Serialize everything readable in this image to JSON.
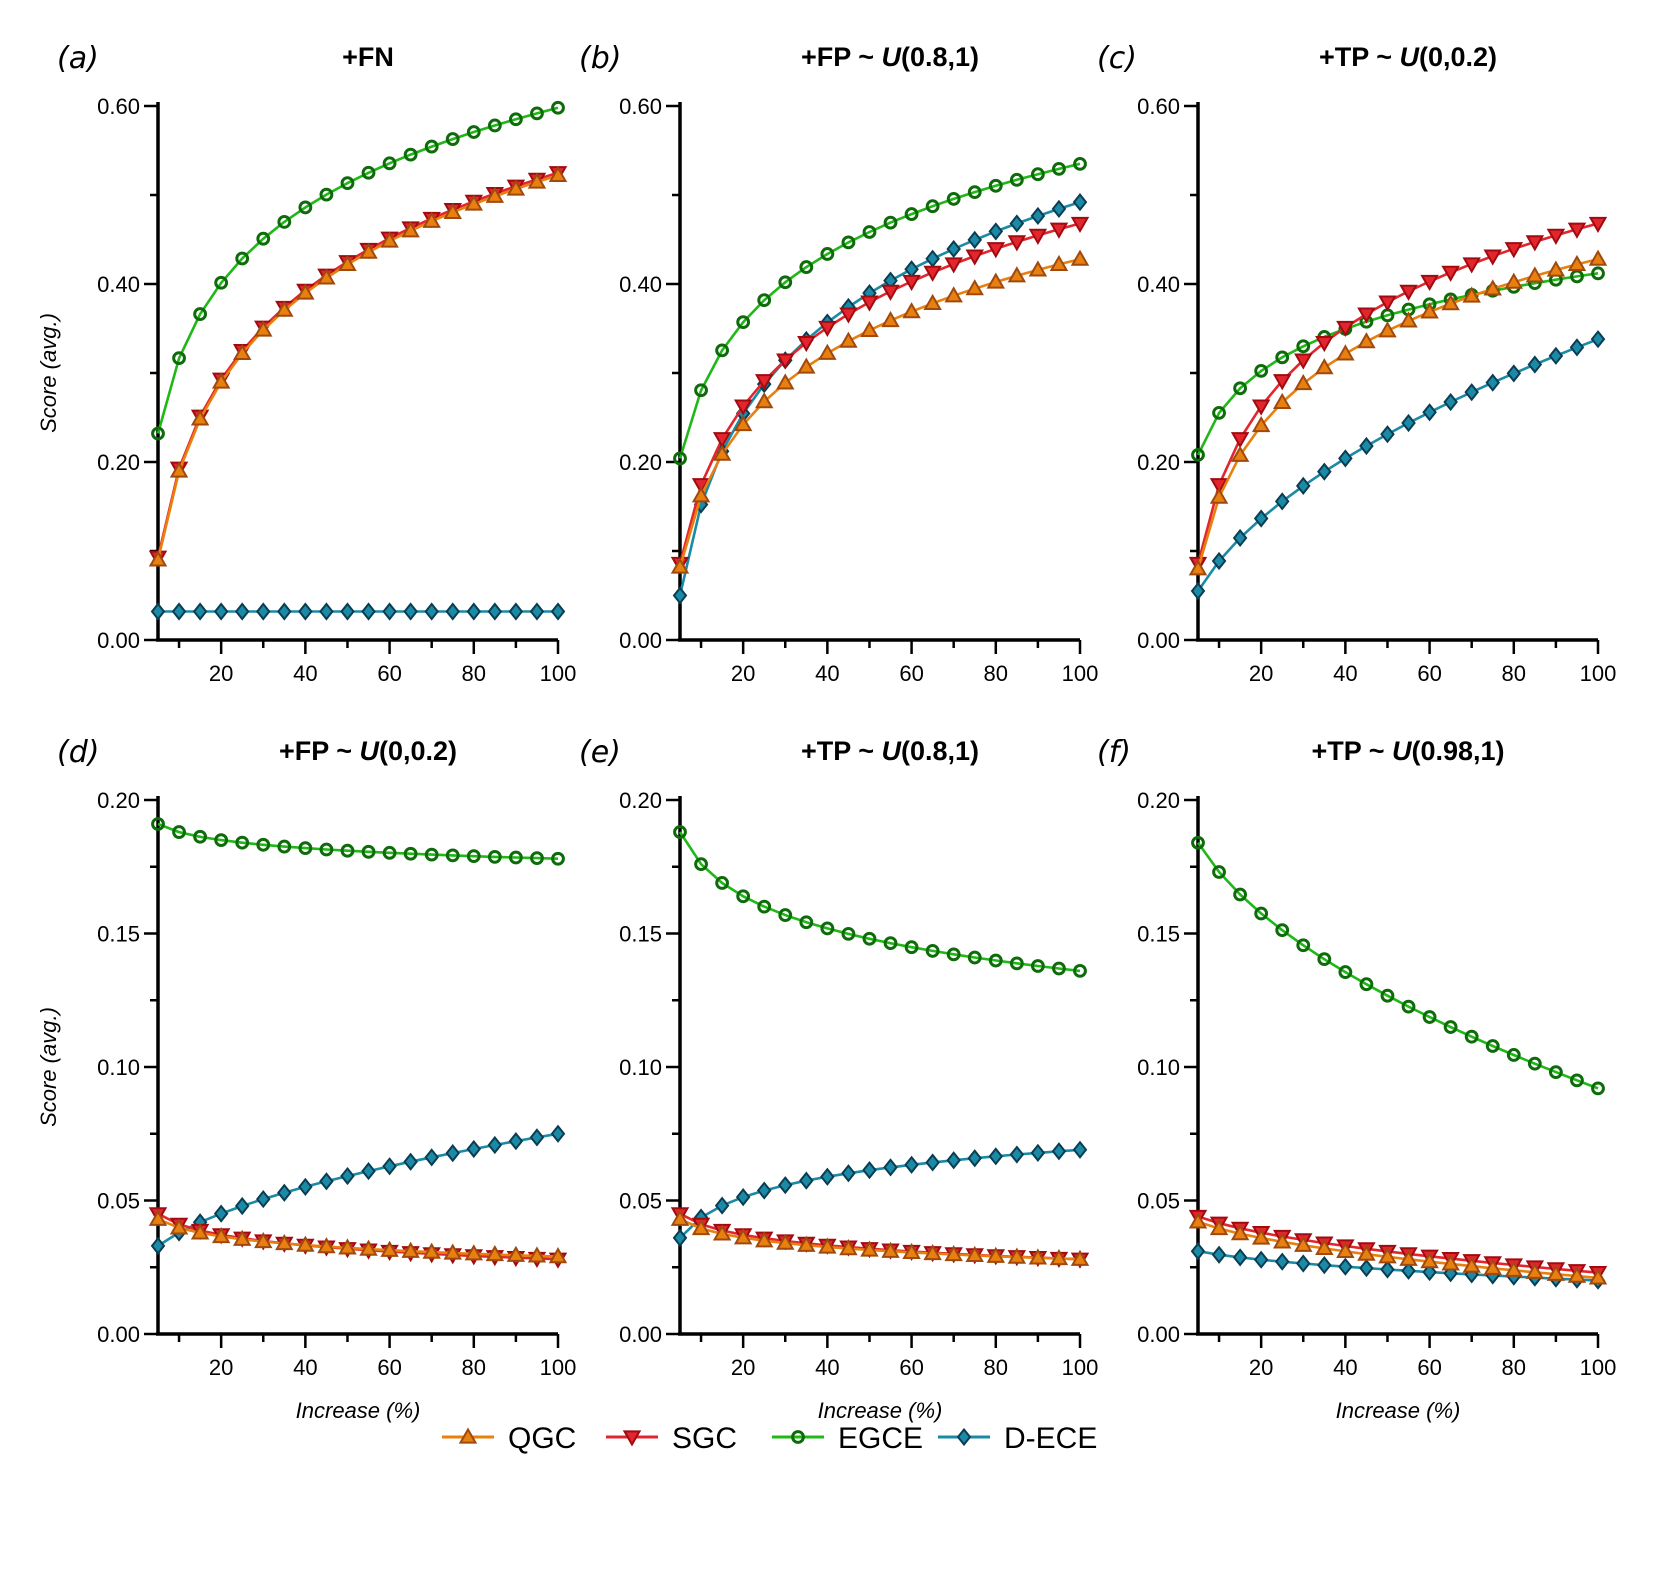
{
  "colors": {
    "QGC": "#e8800f",
    "SGC": "#e3262e",
    "EGCE": "#1fb817",
    "D-ECE": "#1b8aa6",
    "QGC_edge": "#a0490f",
    "SGC_edge": "#a00b10",
    "EGCE_edge": "#0e6b0a",
    "D-ECE_edge": "#0a3d52"
  },
  "legend": [
    {
      "key": "QGC",
      "label": "QGC",
      "marker": "triangle-up"
    },
    {
      "key": "SGC",
      "label": "SGC",
      "marker": "triangle-down"
    },
    {
      "key": "EGCE",
      "label": "EGCE",
      "marker": "circle"
    },
    {
      "key": "D-ECE",
      "label": "D-ECE",
      "marker": "diamond"
    }
  ],
  "chart_data": [
    {
      "type": "line",
      "letter": "(a)",
      "title_parts": [
        "+FN"
      ],
      "xlabel": "",
      "ylabel": "Score (avg.)",
      "xlim": [
        5,
        100
      ],
      "ylim": [
        0,
        0.6
      ],
      "xticks": [
        "20",
        "40",
        "60",
        "80",
        "100"
      ],
      "yticks": [
        "0.00",
        "0.20",
        "0.40",
        "0.60"
      ],
      "x_start": 5,
      "x_step": 5,
      "n": 20,
      "series": [
        {
          "name": "QGC",
          "start": 0.09,
          "end": 0.522,
          "shape": "log"
        },
        {
          "name": "SGC",
          "start": 0.093,
          "end": 0.525,
          "shape": "log"
        },
        {
          "name": "EGCE",
          "start": 0.232,
          "end": 0.598,
          "shape": "log"
        },
        {
          "name": "D-ECE",
          "start": 0.032,
          "end": 0.032,
          "shape": "log"
        }
      ]
    },
    {
      "type": "line",
      "letter": "(b)",
      "title_parts": [
        "+FP ~ ",
        "U",
        "(0.8,1)"
      ],
      "xlabel": "",
      "ylabel": "",
      "xlim": [
        5,
        100
      ],
      "ylim": [
        0,
        0.6
      ],
      "xticks": [
        "20",
        "40",
        "60",
        "80",
        "100"
      ],
      "yticks": [
        "0.00",
        "0.20",
        "0.40",
        "0.60"
      ],
      "x_start": 5,
      "x_step": 5,
      "n": 20,
      "series": [
        {
          "name": "QGC",
          "start": 0.082,
          "end": 0.428,
          "shape": "log"
        },
        {
          "name": "SGC",
          "start": 0.086,
          "end": 0.468,
          "shape": "log"
        },
        {
          "name": "EGCE",
          "start": 0.204,
          "end": 0.535,
          "shape": "log"
        },
        {
          "name": "D-ECE",
          "start": 0.05,
          "end": 0.492,
          "shape": "log"
        }
      ]
    },
    {
      "type": "line",
      "letter": "(c)",
      "title_parts": [
        "+TP ~ ",
        "U",
        "(0,0.2)"
      ],
      "xlabel": "",
      "ylabel": "",
      "xlim": [
        5,
        100
      ],
      "ylim": [
        0,
        0.6
      ],
      "xticks": [
        "20",
        "40",
        "60",
        "80",
        "100"
      ],
      "yticks": [
        "0.00",
        "0.20",
        "0.40",
        "0.60"
      ],
      "x_start": 5,
      "x_step": 5,
      "n": 20,
      "series": [
        {
          "name": "QGC",
          "start": 0.08,
          "end": 0.428,
          "shape": "log"
        },
        {
          "name": "SGC",
          "start": 0.086,
          "end": 0.468,
          "shape": "log"
        },
        {
          "name": "EGCE",
          "start": 0.208,
          "end": 0.412,
          "shape": "log"
        },
        {
          "name": "D-ECE",
          "start": 0.055,
          "end": 0.338,
          "shape": "sqrt"
        }
      ]
    },
    {
      "type": "line",
      "letter": "(d)",
      "title_parts": [
        "+FP ~ ",
        "U",
        "(0,0.2)"
      ],
      "xlabel": "Increase (%)",
      "ylabel": "Score (avg.)",
      "xlim": [
        5,
        100
      ],
      "ylim": [
        0,
        0.2
      ],
      "xticks": [
        "20",
        "40",
        "60",
        "80",
        "100"
      ],
      "yticks": [
        "0.00",
        "0.05",
        "0.10",
        "0.15",
        "0.20"
      ],
      "x_start": 5,
      "x_step": 5,
      "n": 20,
      "series": [
        {
          "name": "QGC",
          "start": 0.043,
          "end": 0.029,
          "shape": "log"
        },
        {
          "name": "SGC",
          "start": 0.045,
          "end": 0.028,
          "shape": "log"
        },
        {
          "name": "EGCE",
          "start": 0.191,
          "end": 0.178,
          "shape": "log"
        },
        {
          "name": "D-ECE",
          "start": 0.033,
          "end": 0.075,
          "shape": "sqrt"
        }
      ]
    },
    {
      "type": "line",
      "letter": "(e)",
      "title_parts": [
        "+TP ~ ",
        "U",
        "(0.8,1)"
      ],
      "xlabel": "Increase (%)",
      "ylabel": "",
      "xlim": [
        5,
        100
      ],
      "ylim": [
        0,
        0.2
      ],
      "xticks": [
        "20",
        "40",
        "60",
        "80",
        "100"
      ],
      "yticks": [
        "0.00",
        "0.05",
        "0.10",
        "0.15",
        "0.20"
      ],
      "x_start": 5,
      "x_step": 5,
      "n": 20,
      "series": [
        {
          "name": "QGC",
          "start": 0.043,
          "end": 0.028,
          "shape": "log"
        },
        {
          "name": "SGC",
          "start": 0.045,
          "end": 0.028,
          "shape": "log"
        },
        {
          "name": "EGCE",
          "start": 0.188,
          "end": 0.136,
          "shape": "log"
        },
        {
          "name": "D-ECE",
          "start": 0.036,
          "end": 0.069,
          "shape": "log"
        }
      ]
    },
    {
      "type": "line",
      "letter": "(f)",
      "title_parts": [
        "+TP ~ ",
        "U",
        "(0.98,1)"
      ],
      "xlabel": "Increase (%)",
      "ylabel": "",
      "xlim": [
        5,
        100
      ],
      "ylim": [
        0,
        0.2
      ],
      "xticks": [
        "20",
        "40",
        "60",
        "80",
        "100"
      ],
      "yticks": [
        "0.00",
        "0.05",
        "0.10",
        "0.15",
        "0.20"
      ],
      "x_start": 5,
      "x_step": 5,
      "n": 20,
      "series": [
        {
          "name": "QGC",
          "start": 0.042,
          "end": 0.021,
          "shape": "sqrt"
        },
        {
          "name": "SGC",
          "start": 0.044,
          "end": 0.023,
          "shape": "sqrt"
        },
        {
          "name": "EGCE",
          "start": 0.184,
          "end": 0.092,
          "shape": "sqrt"
        },
        {
          "name": "D-ECE",
          "start": 0.031,
          "end": 0.02,
          "shape": "sqrt"
        }
      ]
    }
  ]
}
